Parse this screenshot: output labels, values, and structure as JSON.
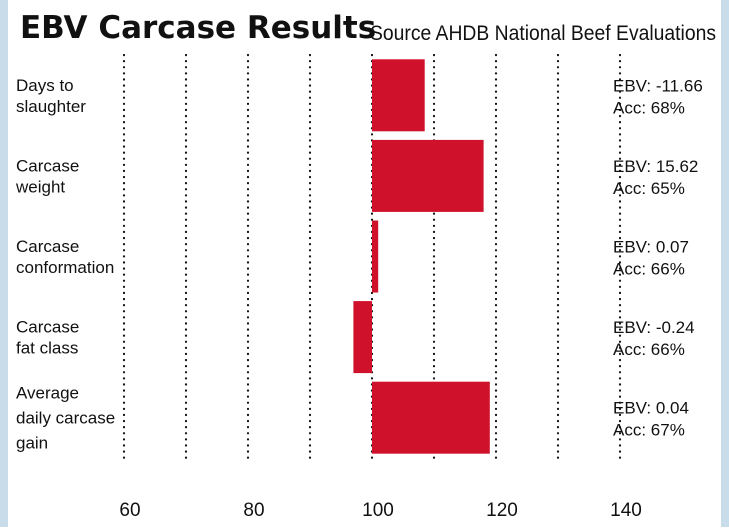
{
  "chart_data": {
    "type": "bar",
    "orientation": "horizontal",
    "title": "EBV Carcase Results",
    "subtitle": "Source AHDB National Beef Evaluations",
    "categories": [
      [
        "Days to",
        "slaughter"
      ],
      [
        "Carcase",
        "weight"
      ],
      [
        "Carcase",
        "conformation"
      ],
      [
        "Carcase",
        "fat class"
      ],
      [
        "Average",
        "daily carcase",
        "gain"
      ]
    ],
    "values": [
      108.5,
      118,
      101,
      97,
      119
    ],
    "base": 100,
    "color": "#d0112b",
    "ebv_labels": [
      "EBV: -11.66",
      "EBV: 15.62",
      "EBV: 0.07",
      "EBV: -0.24",
      "EBV: 0.04"
    ],
    "acc_labels": [
      "Acc: 68%",
      "Acc: 65%",
      "Acc: 66%",
      "Acc: 66%",
      "Acc: 67%"
    ],
    "xlim": [
      60,
      140
    ],
    "xticks": [
      60,
      80,
      100,
      120,
      140
    ],
    "gridlines": [
      60,
      70,
      80,
      90,
      100,
      110,
      120,
      130,
      140
    ],
    "grid": true
  }
}
